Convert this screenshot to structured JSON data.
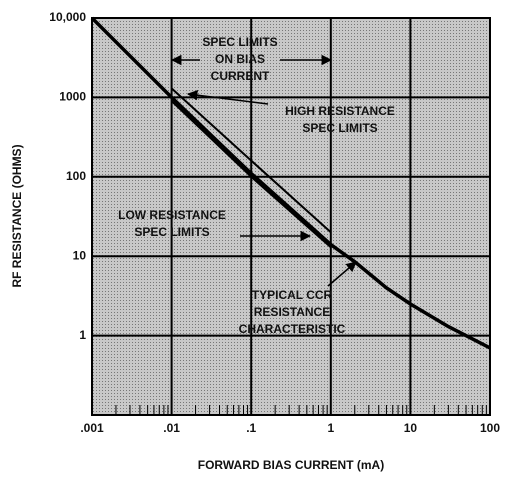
{
  "chart_data": {
    "type": "line",
    "x_label": "FORWARD BIAS CURRENT (mA)",
    "y_label": "RF RESISTANCE (OHMS)",
    "log_x": true,
    "log_y": true,
    "grid": true,
    "xlim": [
      0.001,
      100
    ],
    "ylim": [
      0.1,
      10000
    ],
    "xticks": [
      {
        "value": 0.001,
        "label": ".001"
      },
      {
        "value": 0.01,
        "label": ".01"
      },
      {
        "value": 0.1,
        "label": ".1"
      },
      1,
      10,
      100
    ],
    "yticks": [
      1,
      10,
      100,
      {
        "value": 1000,
        "label": "1000"
      },
      {
        "value": 10000,
        "label": "10,000"
      }
    ],
    "series": [
      {
        "color": "#000",
        "x": [
          0.001,
          0.01,
          0.1,
          1,
          2,
          5,
          10,
          30,
          100
        ],
        "values": [
          10000,
          1000,
          110,
          14,
          8.5,
          4,
          2.5,
          1.3,
          0.7
        ]
      },
      {
        "color": "#000",
        "x": [
          0.01,
          0.1,
          1
        ],
        "values": [
          1300,
          160,
          20
        ]
      },
      {
        "color": "#000",
        "x": [
          0.01,
          0.1,
          1
        ],
        "values": [
          900,
          100,
          13
        ]
      }
    ],
    "annotations": [
      {
        "lines": [
          "SPEC LIMITS",
          "ON BIAS",
          "CURRENT"
        ]
      },
      {
        "lines": [
          "HIGH RESISTANCE",
          "SPEC LIMITS"
        ]
      },
      {
        "lines": [
          "LOW RESISTANCE",
          "SPEC LIMITS"
        ]
      },
      {
        "lines": [
          "TYPICAL CCR",
          "RESISTANCE",
          "CHARACTERISTIC"
        ]
      }
    ]
  }
}
